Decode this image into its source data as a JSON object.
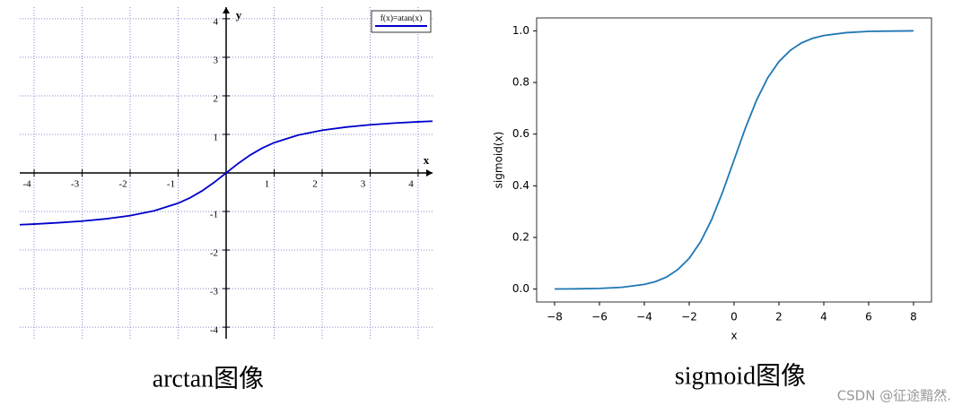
{
  "chart_data": [
    {
      "type": "line",
      "axis_style": "origin",
      "grid": true,
      "legend": "upper right",
      "xlabel": "x",
      "ylabel": "y",
      "caption": "arctan图像",
      "xlim": [
        -4.3,
        4.3
      ],
      "ylim": [
        -4.3,
        4.3
      ],
      "xticks": [
        -4,
        -3,
        -2,
        -1,
        1,
        2,
        3,
        4
      ],
      "yticks": [
        -4,
        -3,
        -2,
        -1,
        1,
        2,
        3,
        4
      ],
      "x": [
        -4.3,
        -4,
        -3.5,
        -3,
        -2.5,
        -2,
        -1.5,
        -1,
        -0.75,
        -0.5,
        -0.25,
        0,
        0.25,
        0.5,
        0.75,
        1,
        1.5,
        2,
        2.5,
        3,
        3.5,
        4,
        4.3
      ],
      "series": [
        {
          "name": "f(x)=atan(x)",
          "color": "#0000cc",
          "values": [
            -1.342,
            -1.326,
            -1.292,
            -1.249,
            -1.19,
            -1.107,
            -0.983,
            -0.785,
            -0.644,
            -0.464,
            -0.245,
            0,
            0.245,
            0.464,
            0.644,
            0.785,
            0.983,
            1.107,
            1.19,
            1.249,
            1.292,
            1.326,
            1.342
          ]
        }
      ]
    },
    {
      "type": "line",
      "axis_style": "box",
      "grid": false,
      "xlabel": "x",
      "ylabel": "sigmoid(x)",
      "caption": "sigmoid图像",
      "xlim": [
        -8.8,
        8.8
      ],
      "ylim": [
        -0.05,
        1.05
      ],
      "xticks": [
        {
          "value": -8,
          "label": "−8"
        },
        {
          "value": -6,
          "label": "−6"
        },
        {
          "value": -4,
          "label": "−4"
        },
        {
          "value": -2,
          "label": "−2"
        },
        0,
        2,
        4,
        6,
        8
      ],
      "yticks": [
        {
          "value": 0,
          "label": "0.0"
        },
        0.2,
        0.4,
        0.6,
        0.8,
        {
          "value": 1,
          "label": "1.0"
        }
      ],
      "x": [
        -8,
        -7,
        -6,
        -5,
        -4,
        -3.5,
        -3,
        -2.5,
        -2,
        -1.5,
        -1,
        -0.5,
        0,
        0.5,
        1,
        1.5,
        2,
        2.5,
        3,
        3.5,
        4,
        5,
        6,
        7,
        8
      ],
      "color": "#1f77b4",
      "values": [
        0.0003,
        0.0009,
        0.0025,
        0.0067,
        0.018,
        0.029,
        0.047,
        0.076,
        0.119,
        0.182,
        0.269,
        0.378,
        0.5,
        0.622,
        0.731,
        0.818,
        0.881,
        0.924,
        0.953,
        0.971,
        0.982,
        0.993,
        0.998,
        0.999,
        1.0
      ]
    }
  ],
  "watermark": "CSDN @征途黯然."
}
